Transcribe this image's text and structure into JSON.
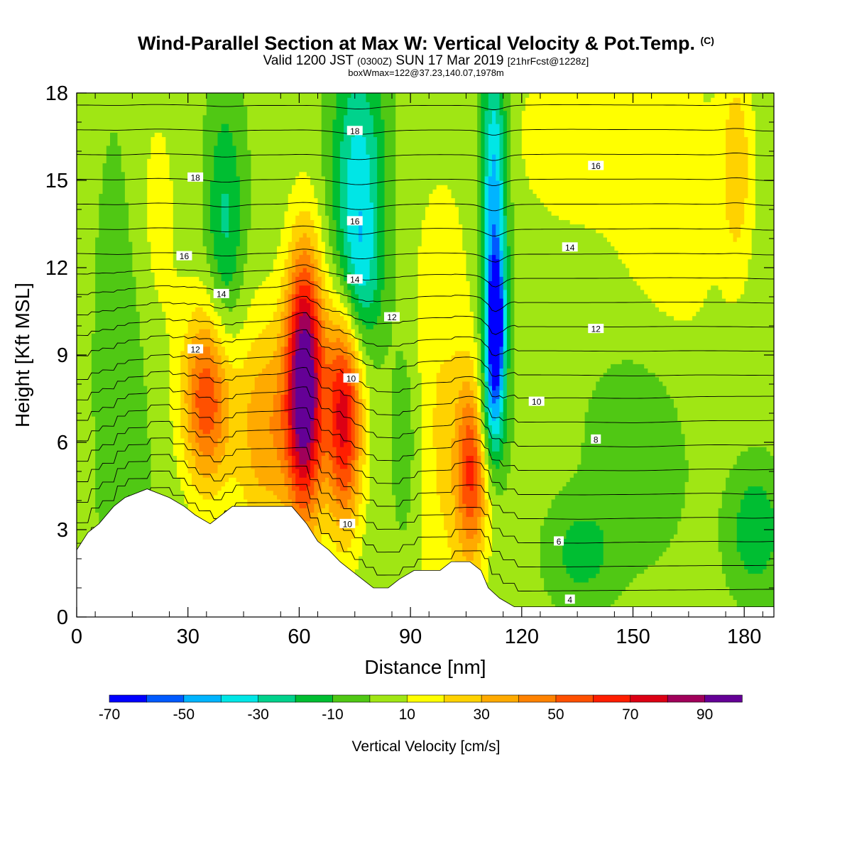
{
  "title": {
    "main": "Wind-Parallel Section at Max W: Vertical Velocity & Pot.Temp.",
    "copyright": "(C)",
    "valid_prefix": "Valid 1200 JST",
    "valid_utc": "(0300Z)",
    "valid_date": "SUN 17 Mar 2019",
    "forecast": "[21hrFcst@1228z]",
    "boxinfo": "boxWmax=122@37.23,140.07,1978m"
  },
  "chart_data": {
    "type": "heatmap",
    "xlabel": "Distance [nm]",
    "ylabel": "Height [Kft MSL]",
    "xlim": [
      0,
      188
    ],
    "ylim": [
      0,
      18
    ],
    "x_ticks": [
      "0",
      "30",
      "60",
      "90",
      "120",
      "150",
      "180"
    ],
    "y_ticks": [
      "0",
      "3",
      "6",
      "9",
      "12",
      "15",
      "18"
    ],
    "colorbar": {
      "label": "Vertical Velocity [cm/s]",
      "tick_labels": [
        "-70",
        "-50",
        "-30",
        "-10",
        "10",
        "30",
        "50",
        "70",
        "90"
      ],
      "bounds": [
        -70,
        -60,
        -50,
        -40,
        -30,
        -20,
        -10,
        0,
        10,
        20,
        30,
        40,
        50,
        60,
        70,
        80,
        90,
        100
      ],
      "colors": [
        "#0000ff",
        "#005aff",
        "#00b4ff",
        "#00e6e6",
        "#00d28c",
        "#00be32",
        "#50c814",
        "#a0e614",
        "#ffff00",
        "#ffd200",
        "#ffaa00",
        "#ff8200",
        "#ff5000",
        "#ff1e00",
        "#dc0014",
        "#a0005a",
        "#640096"
      ]
    },
    "background_class_color": "#a0e614",
    "velocity_cells": [
      {
        "x": 35,
        "z": 7.5,
        "w": 55,
        "sx": 4.5,
        "sz": 2.2
      },
      {
        "x": 61.5,
        "z": 8.0,
        "w": 100,
        "sx": 3.5,
        "sz": 3.2
      },
      {
        "x": 51,
        "z": 6.5,
        "w": 35,
        "sx": 6,
        "sz": 2.8
      },
      {
        "x": 72,
        "z": 7.0,
        "w": 72,
        "sx": 3.5,
        "sz": 2.8
      },
      {
        "x": 106.5,
        "z": 5.0,
        "w": 52,
        "sx": 3.0,
        "sz": 2.2
      },
      {
        "x": 98,
        "z": 6.5,
        "w": 18,
        "sx": 7,
        "sz": 6
      },
      {
        "x": 20,
        "z": 13.5,
        "w": 12,
        "sx": 6,
        "sz": 4
      },
      {
        "x": 160,
        "z": 14.0,
        "w": 12,
        "sx": 12,
        "sz": 5
      },
      {
        "x": 178,
        "z": 15.5,
        "w": 22,
        "sx": 3,
        "sz": 2.5
      },
      {
        "x": 132,
        "z": 16.5,
        "w": 12,
        "sx": 12,
        "sz": 2.5
      },
      {
        "x": 76,
        "z": 15.0,
        "w": -38,
        "sx": 5,
        "sz": 3.2
      },
      {
        "x": 76,
        "z": 11.5,
        "w": -22,
        "sx": 4,
        "sz": 1.8
      },
      {
        "x": 113,
        "z": 10.0,
        "w": -68,
        "sx": 1.6,
        "sz": 1.5
      },
      {
        "x": 112.5,
        "z": 14.0,
        "w": -52,
        "sx": 2.5,
        "sz": 4
      },
      {
        "x": 112,
        "z": 7.0,
        "w": -35,
        "sx": 2.5,
        "sz": 1.5
      },
      {
        "x": 40,
        "z": 13.5,
        "w": -25,
        "sx": 3.5,
        "sz": 3
      },
      {
        "x": 152,
        "z": 6.0,
        "w": -15,
        "sx": 9,
        "sz": 2.5
      },
      {
        "x": 183,
        "z": 3.0,
        "w": -22,
        "sx": 5,
        "sz": 1.5
      },
      {
        "x": 136,
        "z": 2.2,
        "w": -18,
        "sx": 6,
        "sz": 1.2
      },
      {
        "x": 89,
        "z": 6.0,
        "w": -15,
        "sx": 3,
        "sz": 3
      },
      {
        "x": 13,
        "z": 9.0,
        "w": -14,
        "sx": 5,
        "sz": 6
      }
    ],
    "terrain_profile": [
      [
        0,
        2.3
      ],
      [
        3,
        2.9
      ],
      [
        6,
        3.2
      ],
      [
        10,
        3.8
      ],
      [
        13,
        4.1
      ],
      [
        19,
        4.4
      ],
      [
        25,
        4.1
      ],
      [
        29,
        3.8
      ],
      [
        32,
        3.5
      ],
      [
        36,
        3.2
      ],
      [
        39,
        3.5
      ],
      [
        42,
        3.8
      ],
      [
        50,
        3.8
      ],
      [
        58,
        3.8
      ],
      [
        62,
        3.2
      ],
      [
        65,
        2.6
      ],
      [
        68,
        2.3
      ],
      [
        71,
        1.9
      ],
      [
        74,
        1.6
      ],
      [
        77,
        1.3
      ],
      [
        80,
        1.0
      ],
      [
        84,
        1.0
      ],
      [
        87,
        1.3
      ],
      [
        91,
        1.6
      ],
      [
        98,
        1.6
      ],
      [
        101,
        1.9
      ],
      [
        106,
        1.9
      ],
      [
        109,
        1.6
      ],
      [
        111,
        1.0
      ],
      [
        114,
        0.65
      ],
      [
        118,
        0.35
      ],
      [
        188,
        0.35
      ]
    ],
    "theta_contours": {
      "levels": [
        0,
        1,
        2,
        3,
        4,
        5,
        6,
        7,
        8,
        9,
        10,
        11,
        12,
        13,
        14,
        15,
        16,
        17,
        18,
        19,
        20
      ],
      "labels": [
        {
          "text": "18",
          "x": 32,
          "z": 15.1
        },
        {
          "text": "16",
          "x": 29,
          "z": 12.4
        },
        {
          "text": "14",
          "x": 39,
          "z": 11.1
        },
        {
          "text": "12",
          "x": 32,
          "z": 9.2
        },
        {
          "text": "18",
          "x": 75,
          "z": 16.7
        },
        {
          "text": "16",
          "x": 75,
          "z": 13.6
        },
        {
          "text": "14",
          "x": 75,
          "z": 11.6
        },
        {
          "text": "12",
          "x": 85,
          "z": 10.3
        },
        {
          "text": "10",
          "x": 74,
          "z": 8.2
        },
        {
          "text": "10",
          "x": 73,
          "z": 3.2
        },
        {
          "text": "16",
          "x": 140,
          "z": 15.5
        },
        {
          "text": "14",
          "x": 133,
          "z": 12.7
        },
        {
          "text": "12",
          "x": 140,
          "z": 9.9
        },
        {
          "text": "10",
          "x": 124,
          "z": 7.4
        },
        {
          "text": "8",
          "x": 140,
          "z": 6.1
        },
        {
          "text": "6",
          "x": 130,
          "z": 2.6
        },
        {
          "text": "4",
          "x": 133,
          "z": 0.6
        }
      ]
    }
  }
}
